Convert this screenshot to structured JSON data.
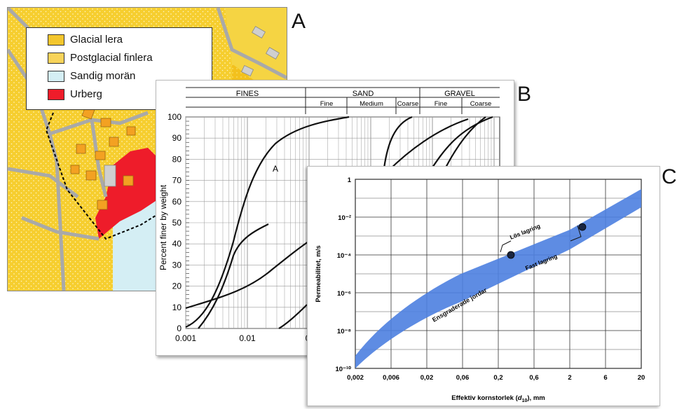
{
  "panels": {
    "a": {
      "label": "A"
    },
    "b": {
      "label": "B"
    },
    "c": {
      "label": "C"
    }
  },
  "map_legend": [
    {
      "label": "Glacial lera",
      "color": "#f3c62d"
    },
    {
      "label": "Postglacial finlera",
      "color": "#f7d35a"
    },
    {
      "label": "Sandig morän",
      "color": "#d4eef4"
    },
    {
      "label": "Urberg",
      "color": "#ee1c2a"
    }
  ],
  "grain_chart": {
    "header_groups": [
      "FINES",
      "SAND",
      "GRAVEL"
    ],
    "sub_headers": [
      "Fine",
      "Medium",
      "Coarse",
      "Fine",
      "Coarse"
    ],
    "ylabel": "Percent finer by weight",
    "y_ticks": [
      "0",
      "10",
      "20",
      "30",
      "40",
      "50",
      "60",
      "70",
      "80",
      "90",
      "100"
    ],
    "x_ticks": [
      "0.001",
      "0.01",
      "0"
    ],
    "curve_label": "A"
  },
  "chart_data": {
    "type": "line",
    "xlabel": "Effektiv kornstorlek (d10), mm",
    "xlabel_main": "Effektiv kornstorlek (",
    "xlabel_var": "d",
    "xlabel_sub": "10",
    "xlabel_end": "), mm",
    "ylabel": "Permeabilitet, m/s",
    "x_ticks": [
      "0,002",
      "0,006",
      "0,02",
      "0,06",
      "0,2",
      "0,6",
      "2",
      "6",
      "20"
    ],
    "y_ticks": [
      "1",
      "10⁻²",
      "10⁻⁴",
      "10⁻⁶",
      "10⁻⁸",
      "10⁻¹⁰"
    ],
    "band_label": "Ensgraderade jordar",
    "annotations": [
      "Lös lagring",
      "Fast lagring"
    ],
    "points": [
      {
        "label": "Lös lagring",
        "x": 0.3,
        "y": 0.0001
      },
      {
        "label": "Fast lagring",
        "x": 3,
        "y": 0.003
      }
    ],
    "band_color": "#4d7fe0"
  }
}
